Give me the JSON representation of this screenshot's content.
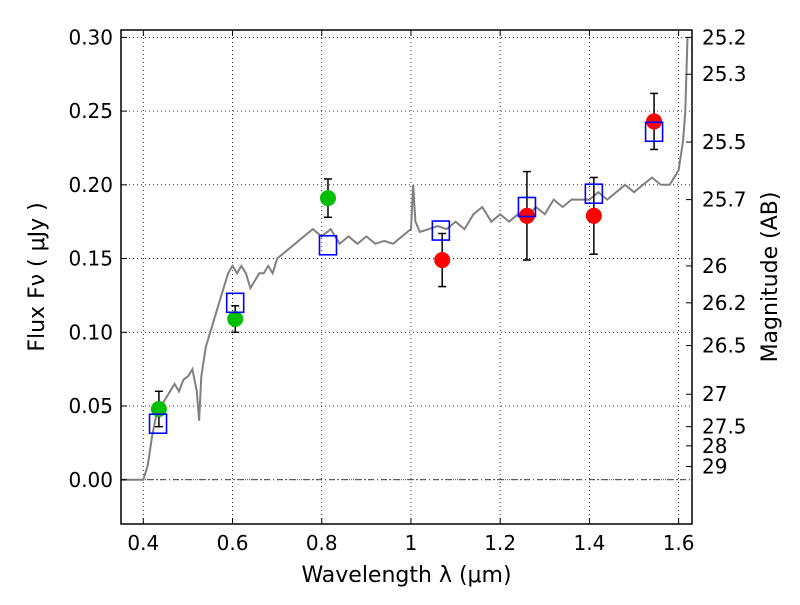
{
  "chart_data": {
    "type": "scatter",
    "xlabel": "Wavelength  λ (μm)",
    "ylabel": "Flux  Fν  ( μJy )",
    "ylabel_right": "Magnitude (AB)",
    "xlim": [
      0.35,
      1.63
    ],
    "ylim": [
      -0.03,
      0.305
    ],
    "x_ticks": [
      0.4,
      0.6,
      0.8,
      1.0,
      1.2,
      1.4,
      1.6
    ],
    "x_tick_labels": [
      "0.4",
      "0.6",
      "0.8",
      "1",
      "1.2",
      "1.4",
      "1.6"
    ],
    "y_ticks": [
      0.0,
      0.05,
      0.1,
      0.15,
      0.2,
      0.25,
      0.3
    ],
    "y_tick_labels": [
      "0.00",
      "0.05",
      "0.10",
      "0.15",
      "0.20",
      "0.25",
      "0.30"
    ],
    "right_ticks": [
      {
        "label": "25.2",
        "flux": 0.3
      },
      {
        "label": "25.3",
        "flux": 0.275
      },
      {
        "label": "25.5",
        "flux": 0.229
      },
      {
        "label": "25.7",
        "flux": 0.19
      },
      {
        "label": "26",
        "flux": 0.145
      },
      {
        "label": "26.2",
        "flux": 0.12
      },
      {
        "label": "26.5",
        "flux": 0.091
      },
      {
        "label": "27",
        "flux": 0.058
      },
      {
        "label": "27.5",
        "flux": 0.036
      },
      {
        "label": "28",
        "flux": 0.023
      },
      {
        "label": "29",
        "flux": 0.009
      }
    ],
    "grid": true,
    "zero_line": true,
    "colors": {
      "green": "#00bf00",
      "red": "#ff0000",
      "model_box": "#0000ff",
      "spectrum": "#808080",
      "errorbar": "#000000"
    },
    "series": [
      {
        "marker": "circle",
        "color": "green",
        "points": [
          {
            "x": 0.435,
            "y": 0.048,
            "err": 0.012
          },
          {
            "x": 0.606,
            "y": 0.109,
            "err": 0.009
          },
          {
            "x": 0.814,
            "y": 0.191,
            "err": 0.013
          }
        ]
      },
      {
        "marker": "circle",
        "color": "red",
        "points": [
          {
            "x": 1.07,
            "y": 0.149,
            "err": 0.018
          },
          {
            "x": 1.26,
            "y": 0.179,
            "err": 0.03
          },
          {
            "x": 1.41,
            "y": 0.179,
            "err": 0.026
          },
          {
            "x": 1.545,
            "y": 0.243,
            "err": 0.019
          }
        ]
      },
      {
        "marker": "open-square",
        "color": "model_box",
        "points": [
          {
            "x": 0.433,
            "y": 0.038
          },
          {
            "x": 0.606,
            "y": 0.12
          },
          {
            "x": 0.814,
            "y": 0.159
          },
          {
            "x": 1.067,
            "y": 0.169
          },
          {
            "x": 1.26,
            "y": 0.185
          },
          {
            "x": 1.41,
            "y": 0.194
          },
          {
            "x": 1.545,
            "y": 0.236
          }
        ]
      },
      {
        "type": "line",
        "color": "spectrum",
        "x": [
          0.35,
          0.38,
          0.4,
          0.41,
          0.42,
          0.43,
          0.44,
          0.45,
          0.46,
          0.47,
          0.48,
          0.49,
          0.5,
          0.51,
          0.52,
          0.525,
          0.53,
          0.54,
          0.55,
          0.56,
          0.57,
          0.58,
          0.59,
          0.6,
          0.61,
          0.62,
          0.63,
          0.64,
          0.65,
          0.66,
          0.67,
          0.68,
          0.69,
          0.7,
          0.72,
          0.74,
          0.76,
          0.78,
          0.8,
          0.82,
          0.84,
          0.86,
          0.88,
          0.9,
          0.92,
          0.94,
          0.96,
          0.98,
          1.0,
          1.005,
          1.01,
          1.02,
          1.04,
          1.06,
          1.08,
          1.1,
          1.12,
          1.14,
          1.16,
          1.18,
          1.2,
          1.22,
          1.24,
          1.26,
          1.28,
          1.3,
          1.32,
          1.34,
          1.36,
          1.38,
          1.4,
          1.42,
          1.44,
          1.46,
          1.48,
          1.5,
          1.52,
          1.54,
          1.56,
          1.58,
          1.59,
          1.6,
          1.61,
          1.615,
          1.62
        ],
        "y": [
          0.0,
          0.0,
          0.0,
          0.01,
          0.03,
          0.045,
          0.05,
          0.055,
          0.06,
          0.065,
          0.06,
          0.068,
          0.07,
          0.075,
          0.06,
          0.04,
          0.07,
          0.09,
          0.1,
          0.11,
          0.12,
          0.13,
          0.14,
          0.145,
          0.14,
          0.145,
          0.14,
          0.13,
          0.135,
          0.14,
          0.14,
          0.145,
          0.14,
          0.15,
          0.155,
          0.16,
          0.165,
          0.17,
          0.165,
          0.17,
          0.16,
          0.165,
          0.16,
          0.165,
          0.16,
          0.162,
          0.16,
          0.165,
          0.17,
          0.2,
          0.175,
          0.168,
          0.17,
          0.172,
          0.17,
          0.175,
          0.17,
          0.18,
          0.185,
          0.175,
          0.18,
          0.175,
          0.18,
          0.178,
          0.185,
          0.18,
          0.19,
          0.185,
          0.19,
          0.19,
          0.19,
          0.195,
          0.19,
          0.195,
          0.2,
          0.195,
          0.2,
          0.205,
          0.2,
          0.2,
          0.205,
          0.21,
          0.23,
          0.25,
          0.3
        ]
      }
    ]
  }
}
